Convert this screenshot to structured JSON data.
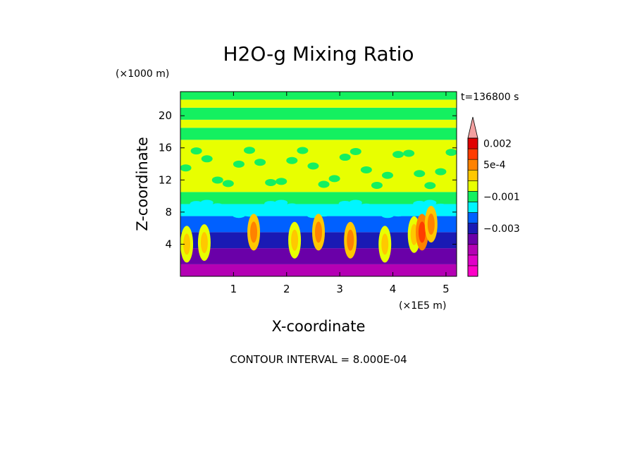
{
  "chart_data": {
    "type": "heatmap",
    "title": "H2O-g Mixing Ratio",
    "xlabel": "X-coordinate",
    "ylabel": "Z-coordinate",
    "x_unit": "(×1E5 m)",
    "y_unit": "(×1000 m)",
    "time_label": "t=136800 s",
    "footer": "CONTOUR INTERVAL = 8.000E-04",
    "xlim": [
      0,
      5.2
    ],
    "ylim": [
      0,
      23
    ],
    "xticks": [
      1,
      2,
      3,
      4,
      5
    ],
    "yticks": [
      4,
      8,
      12,
      16,
      20
    ],
    "colorbar": {
      "levels": [
        {
          "color": "#ff00c8"
        },
        {
          "color": "#e000c8"
        },
        {
          "color": "#b400b4"
        },
        {
          "color": "#6a00a8"
        },
        {
          "color": "#1a1ab4"
        },
        {
          "color": "#0060ff"
        },
        {
          "color": "#00f5ff"
        },
        {
          "color": "#14f060"
        },
        {
          "color": "#e8ff00"
        },
        {
          "color": "#ffc800"
        },
        {
          "color": "#ff8200"
        },
        {
          "color": "#ff3c00"
        },
        {
          "color": "#e00000"
        },
        {
          "color": "#f3a0a0"
        }
      ],
      "labels": [
        "0.002",
        "5e-4",
        "−0.001",
        "−0.003"
      ],
      "label_levels": [
        12,
        10,
        7,
        4
      ],
      "extend": "max"
    },
    "bands": [
      {
        "zmin": 0,
        "zmax": 1.5,
        "level": 2
      },
      {
        "zmin": 1.5,
        "zmax": 3.5,
        "level": 3
      },
      {
        "zmin": 3.5,
        "zmax": 5.5,
        "level": 4
      },
      {
        "zmin": 5.5,
        "zmax": 7.5,
        "level": 5
      },
      {
        "zmin": 7.5,
        "zmax": 9.0,
        "level": 6
      },
      {
        "zmin": 9.0,
        "zmax": 10.5,
        "level": 7
      },
      {
        "zmin": 10.5,
        "zmax": 17.0,
        "level": 8
      },
      {
        "zmin": 17.0,
        "zmax": 18.5,
        "level": 7
      },
      {
        "zmin": 18.5,
        "zmax": 19.5,
        "level": 8
      },
      {
        "zmin": 19.5,
        "zmax": 21.0,
        "level": 7
      },
      {
        "zmin": 21.0,
        "zmax": 22.0,
        "level": 8
      },
      {
        "zmin": 22.0,
        "zmax": 23.0,
        "level": 7
      }
    ],
    "plumes": [
      {
        "x": 0.12,
        "z": 4.0,
        "level": 9
      },
      {
        "x": 0.45,
        "z": 4.2,
        "level": 9
      },
      {
        "x": 1.38,
        "z": 5.5,
        "level": 10
      },
      {
        "x": 2.15,
        "z": 4.5,
        "level": 9
      },
      {
        "x": 2.6,
        "z": 5.5,
        "level": 10
      },
      {
        "x": 3.2,
        "z": 4.5,
        "level": 10
      },
      {
        "x": 3.85,
        "z": 4.0,
        "level": 9
      },
      {
        "x": 4.4,
        "z": 5.2,
        "level": 9
      },
      {
        "x": 4.55,
        "z": 5.5,
        "level": 11
      },
      {
        "x": 4.72,
        "z": 6.5,
        "level": 10
      }
    ]
  }
}
